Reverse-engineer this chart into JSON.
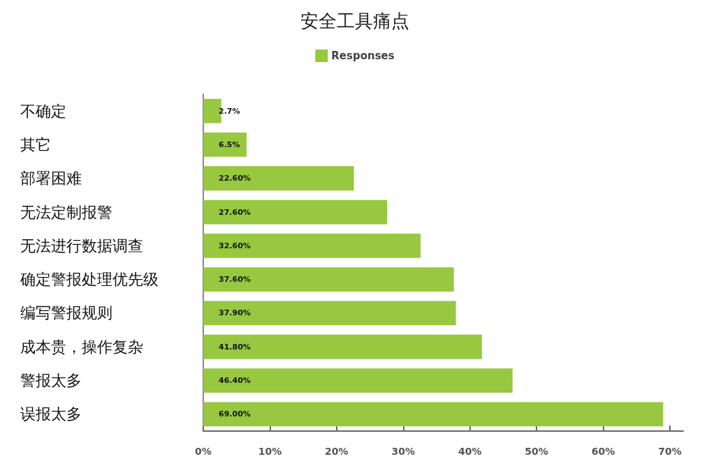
{
  "chart_data": {
    "type": "bar",
    "orientation": "horizontal",
    "title": "安全工具痛点",
    "categories": [
      "不确定",
      "其它",
      "部署困难",
      "无法定制报警",
      "无法进行数据调查",
      "确定警报处理优先级",
      "编写警报规则",
      "成本贵，操作复杂",
      "警报太多",
      "误报太多"
    ],
    "series": [
      {
        "name": "Responses",
        "color": "#97c83f",
        "values": [
          2.7,
          6.5,
          22.6,
          27.6,
          32.6,
          37.6,
          37.9,
          41.8,
          46.4,
          69.0
        ],
        "value_labels": [
          "2.7%",
          "6.5%",
          "22.60%",
          "27.60%",
          "32.60%",
          "37.60%",
          "37.90%",
          "41.80%",
          "46.40%",
          "69.00%"
        ]
      }
    ],
    "xlim": [
      0,
      72
    ],
    "xticks": [
      {
        "value": 0,
        "label": "0%"
      },
      {
        "value": 10,
        "label": "10%"
      },
      {
        "value": 20,
        "label": "20%"
      },
      {
        "value": 30,
        "label": "30%"
      },
      {
        "value": 40,
        "label": "40%"
      },
      {
        "value": 50,
        "label": "50%"
      },
      {
        "value": 60,
        "label": "60%"
      },
      {
        "value": 70,
        "label": "70%"
      }
    ],
    "grid": false,
    "legend": "top"
  }
}
